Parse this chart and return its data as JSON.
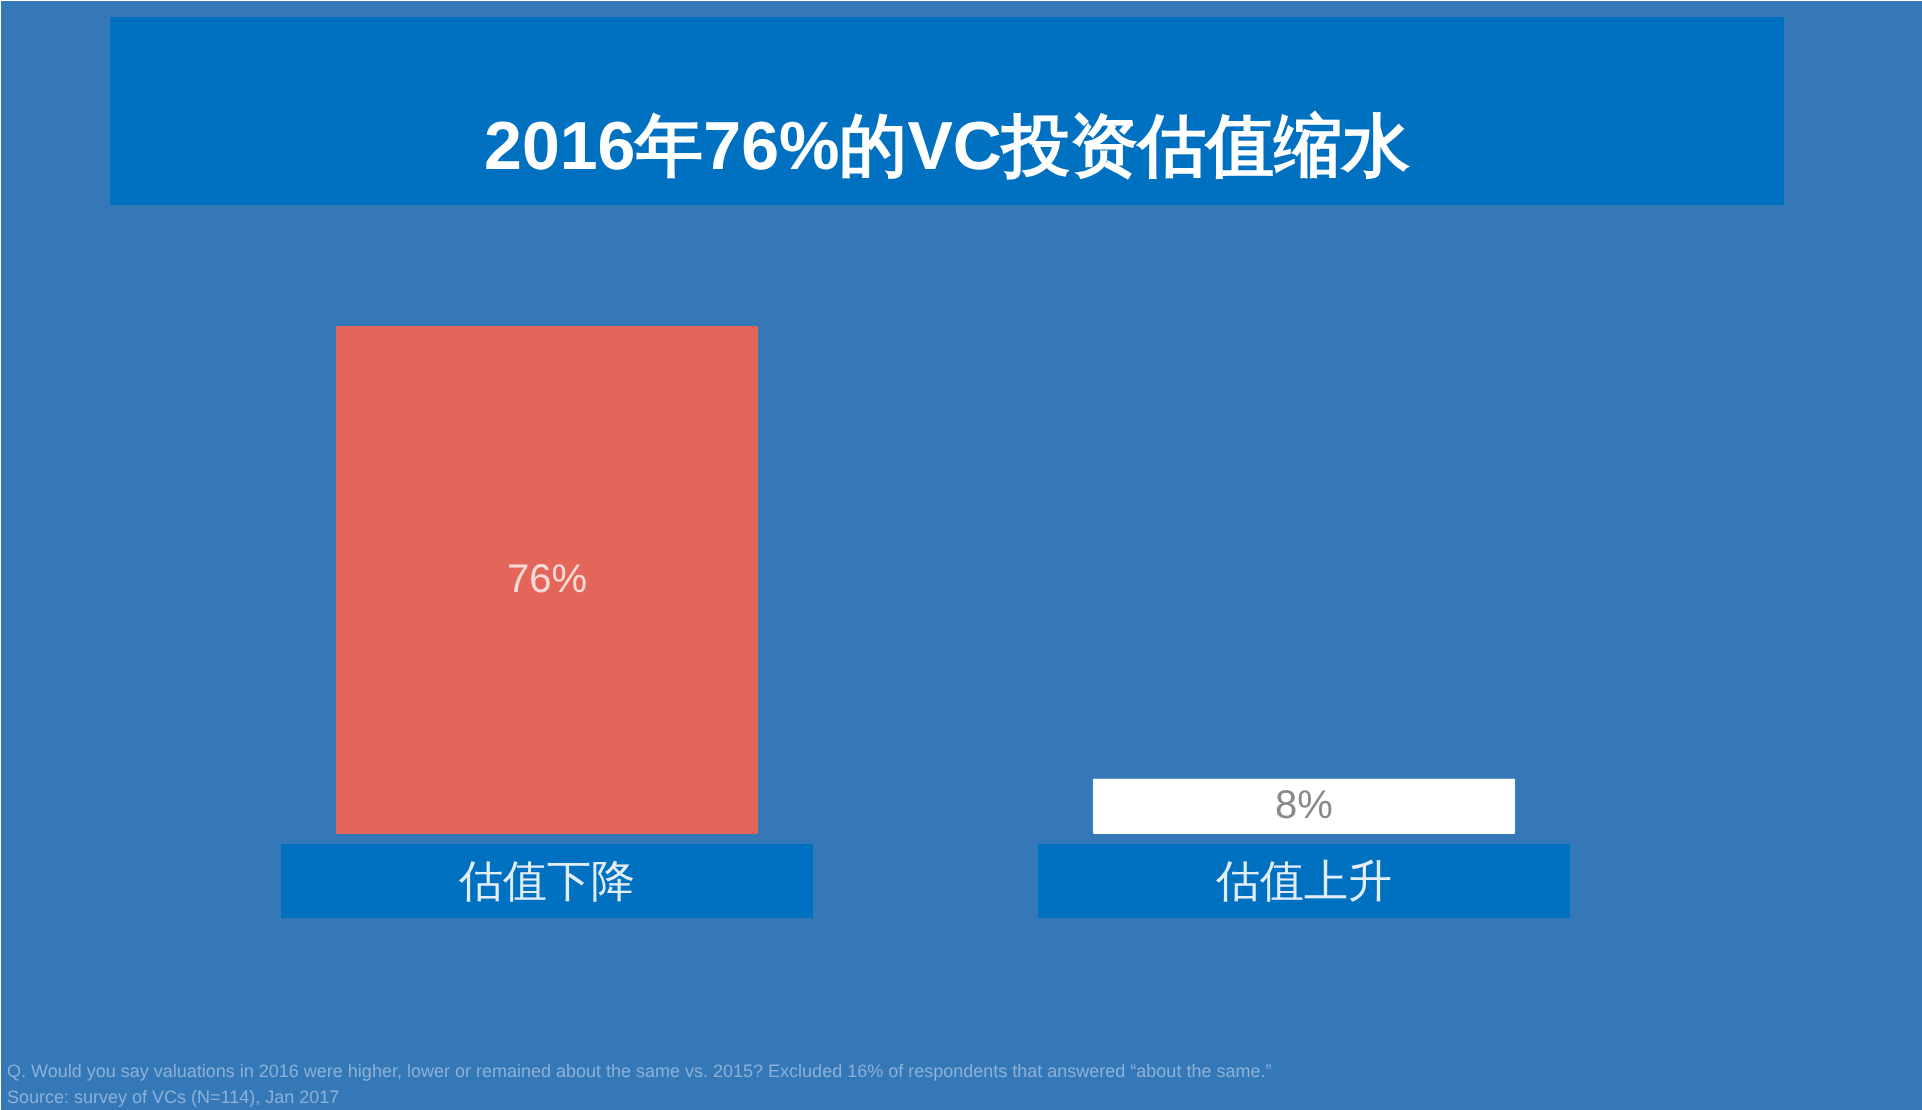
{
  "chart_data": {
    "type": "bar",
    "title": "2016年76%的VC投资估值缩水",
    "categories": [
      "估值下降",
      "估值上升"
    ],
    "values": [
      76,
      8
    ],
    "colors": [
      "#e4655a",
      "#ffffff"
    ],
    "value_labels": [
      "76%",
      "8%"
    ],
    "tick_labels": "x",
    "annotations": [
      "Q. Would you say valuations in 2016 were higher, lower or remained about the same vs. 2015? Excluded 16% of respondents that answered “about the same.”",
      "Source: survey of VCs (N=114), Jan 2017"
    ]
  }
}
